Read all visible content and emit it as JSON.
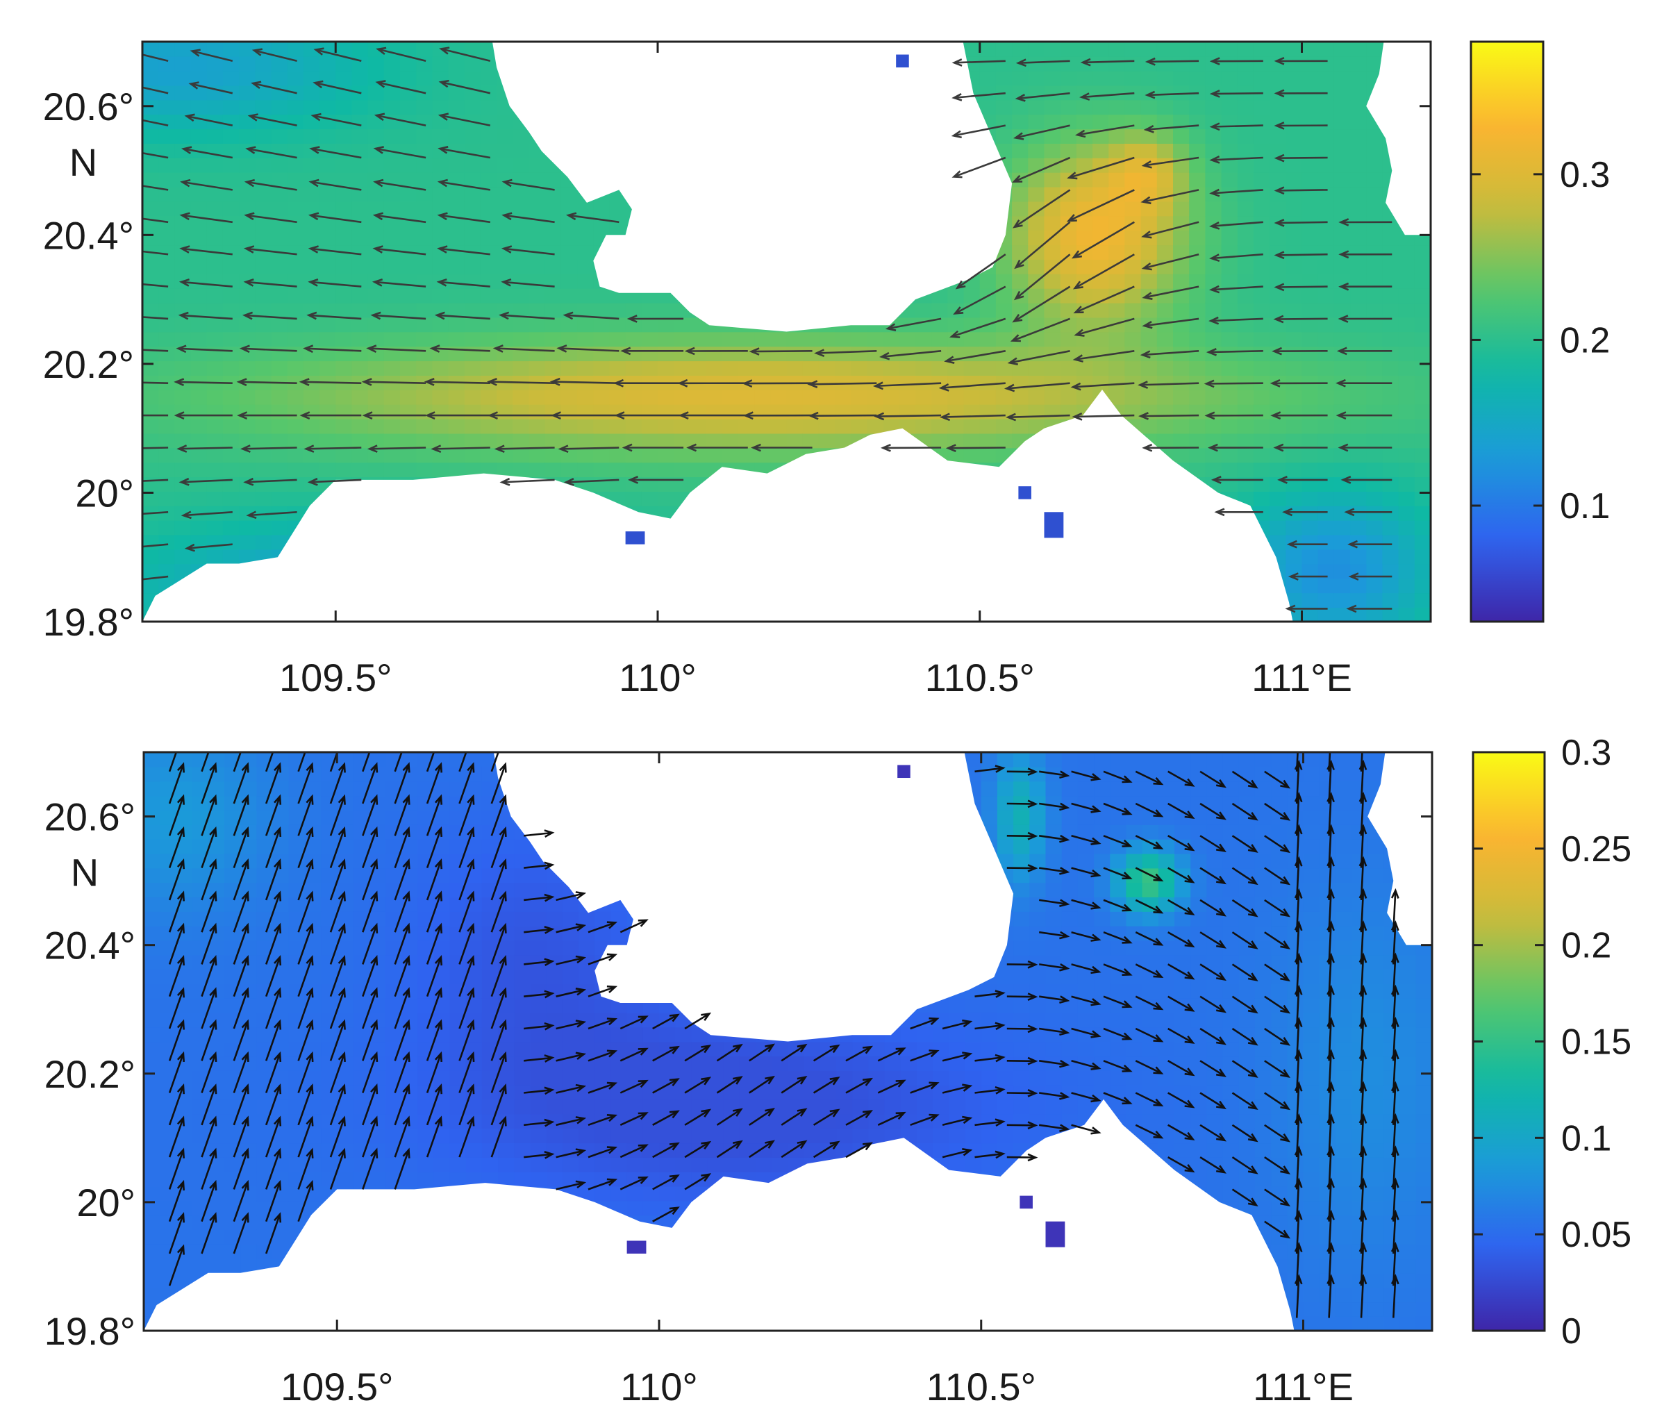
{
  "colormap": [
    "#3e26a8",
    "#2f63f0",
    "#1b9bd9",
    "#0fb9a4",
    "#57c76b",
    "#c9bb3b",
    "#fbb530",
    "#f9fb15"
  ],
  "land_color": "#ffffff",
  "arrow_color_top": "#3a3a3a",
  "arrow_color_bottom": "#111111",
  "chart_data": [
    {
      "type": "heatmap",
      "title": "",
      "xlabel": "",
      "ylabel": "",
      "xlim": [
        109.2,
        111.2
      ],
      "ylim": [
        19.8,
        20.7
      ],
      "x_ticks": [
        "109.5°",
        "110°",
        "110.5°",
        "111°E"
      ],
      "y_ticks": [
        "19.8°",
        "20°",
        "20.2°",
        "20.4°",
        "20.6°"
      ],
      "y_unit": "N",
      "colorbar_range": [
        0.03,
        0.38
      ],
      "colorbar_ticks": [
        "0.1",
        "0.2",
        "0.3"
      ],
      "colorbar_tick_values": [
        0.1,
        0.2,
        0.3
      ],
      "flow": "westward current through the strait; strongest near 110.6–110.8°E, 20.3–20.5°N (~0.35); jet ~0.22 near 110°E, 20.15°N"
    },
    {
      "type": "heatmap",
      "title": "",
      "xlabel": "",
      "ylabel": "",
      "xlim": [
        109.2,
        111.2
      ],
      "ylim": [
        19.8,
        20.7
      ],
      "x_ticks": [
        "109.5°",
        "110°",
        "110.5°",
        "111°E"
      ],
      "y_ticks": [
        "19.8°",
        "20°",
        "20.2°",
        "20.4°",
        "20.6°"
      ],
      "y_unit": "N",
      "colorbar_range": [
        0,
        0.3
      ],
      "colorbar_ticks": [
        "0",
        "0.05",
        "0.1",
        "0.15",
        "0.2",
        "0.25",
        "0.3"
      ],
      "colorbar_tick_values": [
        0,
        0.05,
        0.1,
        0.15,
        0.2,
        0.25,
        0.3
      ],
      "flow": "weak residual flow; north-northeastward in the west and east; local maximum ~0.17 near 110.75°E, 20.5°N"
    }
  ]
}
